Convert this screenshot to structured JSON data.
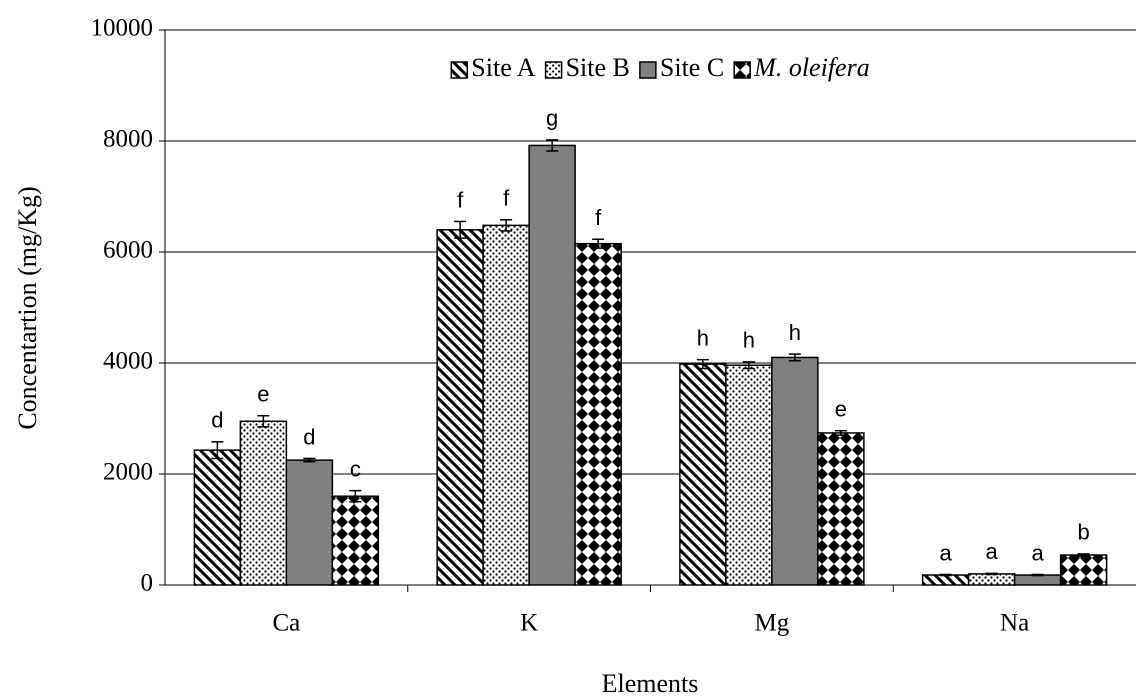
{
  "chart_data": {
    "type": "bar",
    "x_label": "Elements",
    "y_label": "Concentartion (mg/Kg)",
    "categories": [
      "Ca",
      "K",
      "Mg",
      "Na"
    ],
    "series": [
      {
        "name": "Site A",
        "color": "#000000",
        "pattern": "diagonal",
        "values": [
          2430,
          6400,
          3980,
          180
        ],
        "errors": [
          150,
          150,
          80,
          10
        ],
        "annotations": [
          "d",
          "f",
          "h",
          "a"
        ]
      },
      {
        "name": "Site B",
        "color": "#000000",
        "pattern": "dots",
        "values": [
          2950,
          6480,
          3960,
          200
        ],
        "errors": [
          100,
          100,
          60,
          10
        ],
        "annotations": [
          "e",
          "f",
          "h",
          "a"
        ]
      },
      {
        "name": "Site C",
        "color": "#808080",
        "pattern": "solid",
        "values": [
          2250,
          7920,
          4100,
          180
        ],
        "errors": [
          30,
          100,
          60,
          10
        ],
        "annotations": [
          "d",
          "g",
          "h",
          "a"
        ]
      },
      {
        "name": "M. oleifera",
        "color": "#000000",
        "pattern": "checker",
        "italic": true,
        "values": [
          1600,
          6150,
          2740,
          540
        ],
        "errors": [
          100,
          80,
          40,
          20
        ],
        "annotations": [
          "c",
          "f",
          "e",
          "b"
        ]
      }
    ],
    "ylim": [
      0,
      10000
    ],
    "yticks": [
      0,
      2000,
      4000,
      6000,
      8000,
      10000
    ],
    "grid": true,
    "legend": "top"
  }
}
